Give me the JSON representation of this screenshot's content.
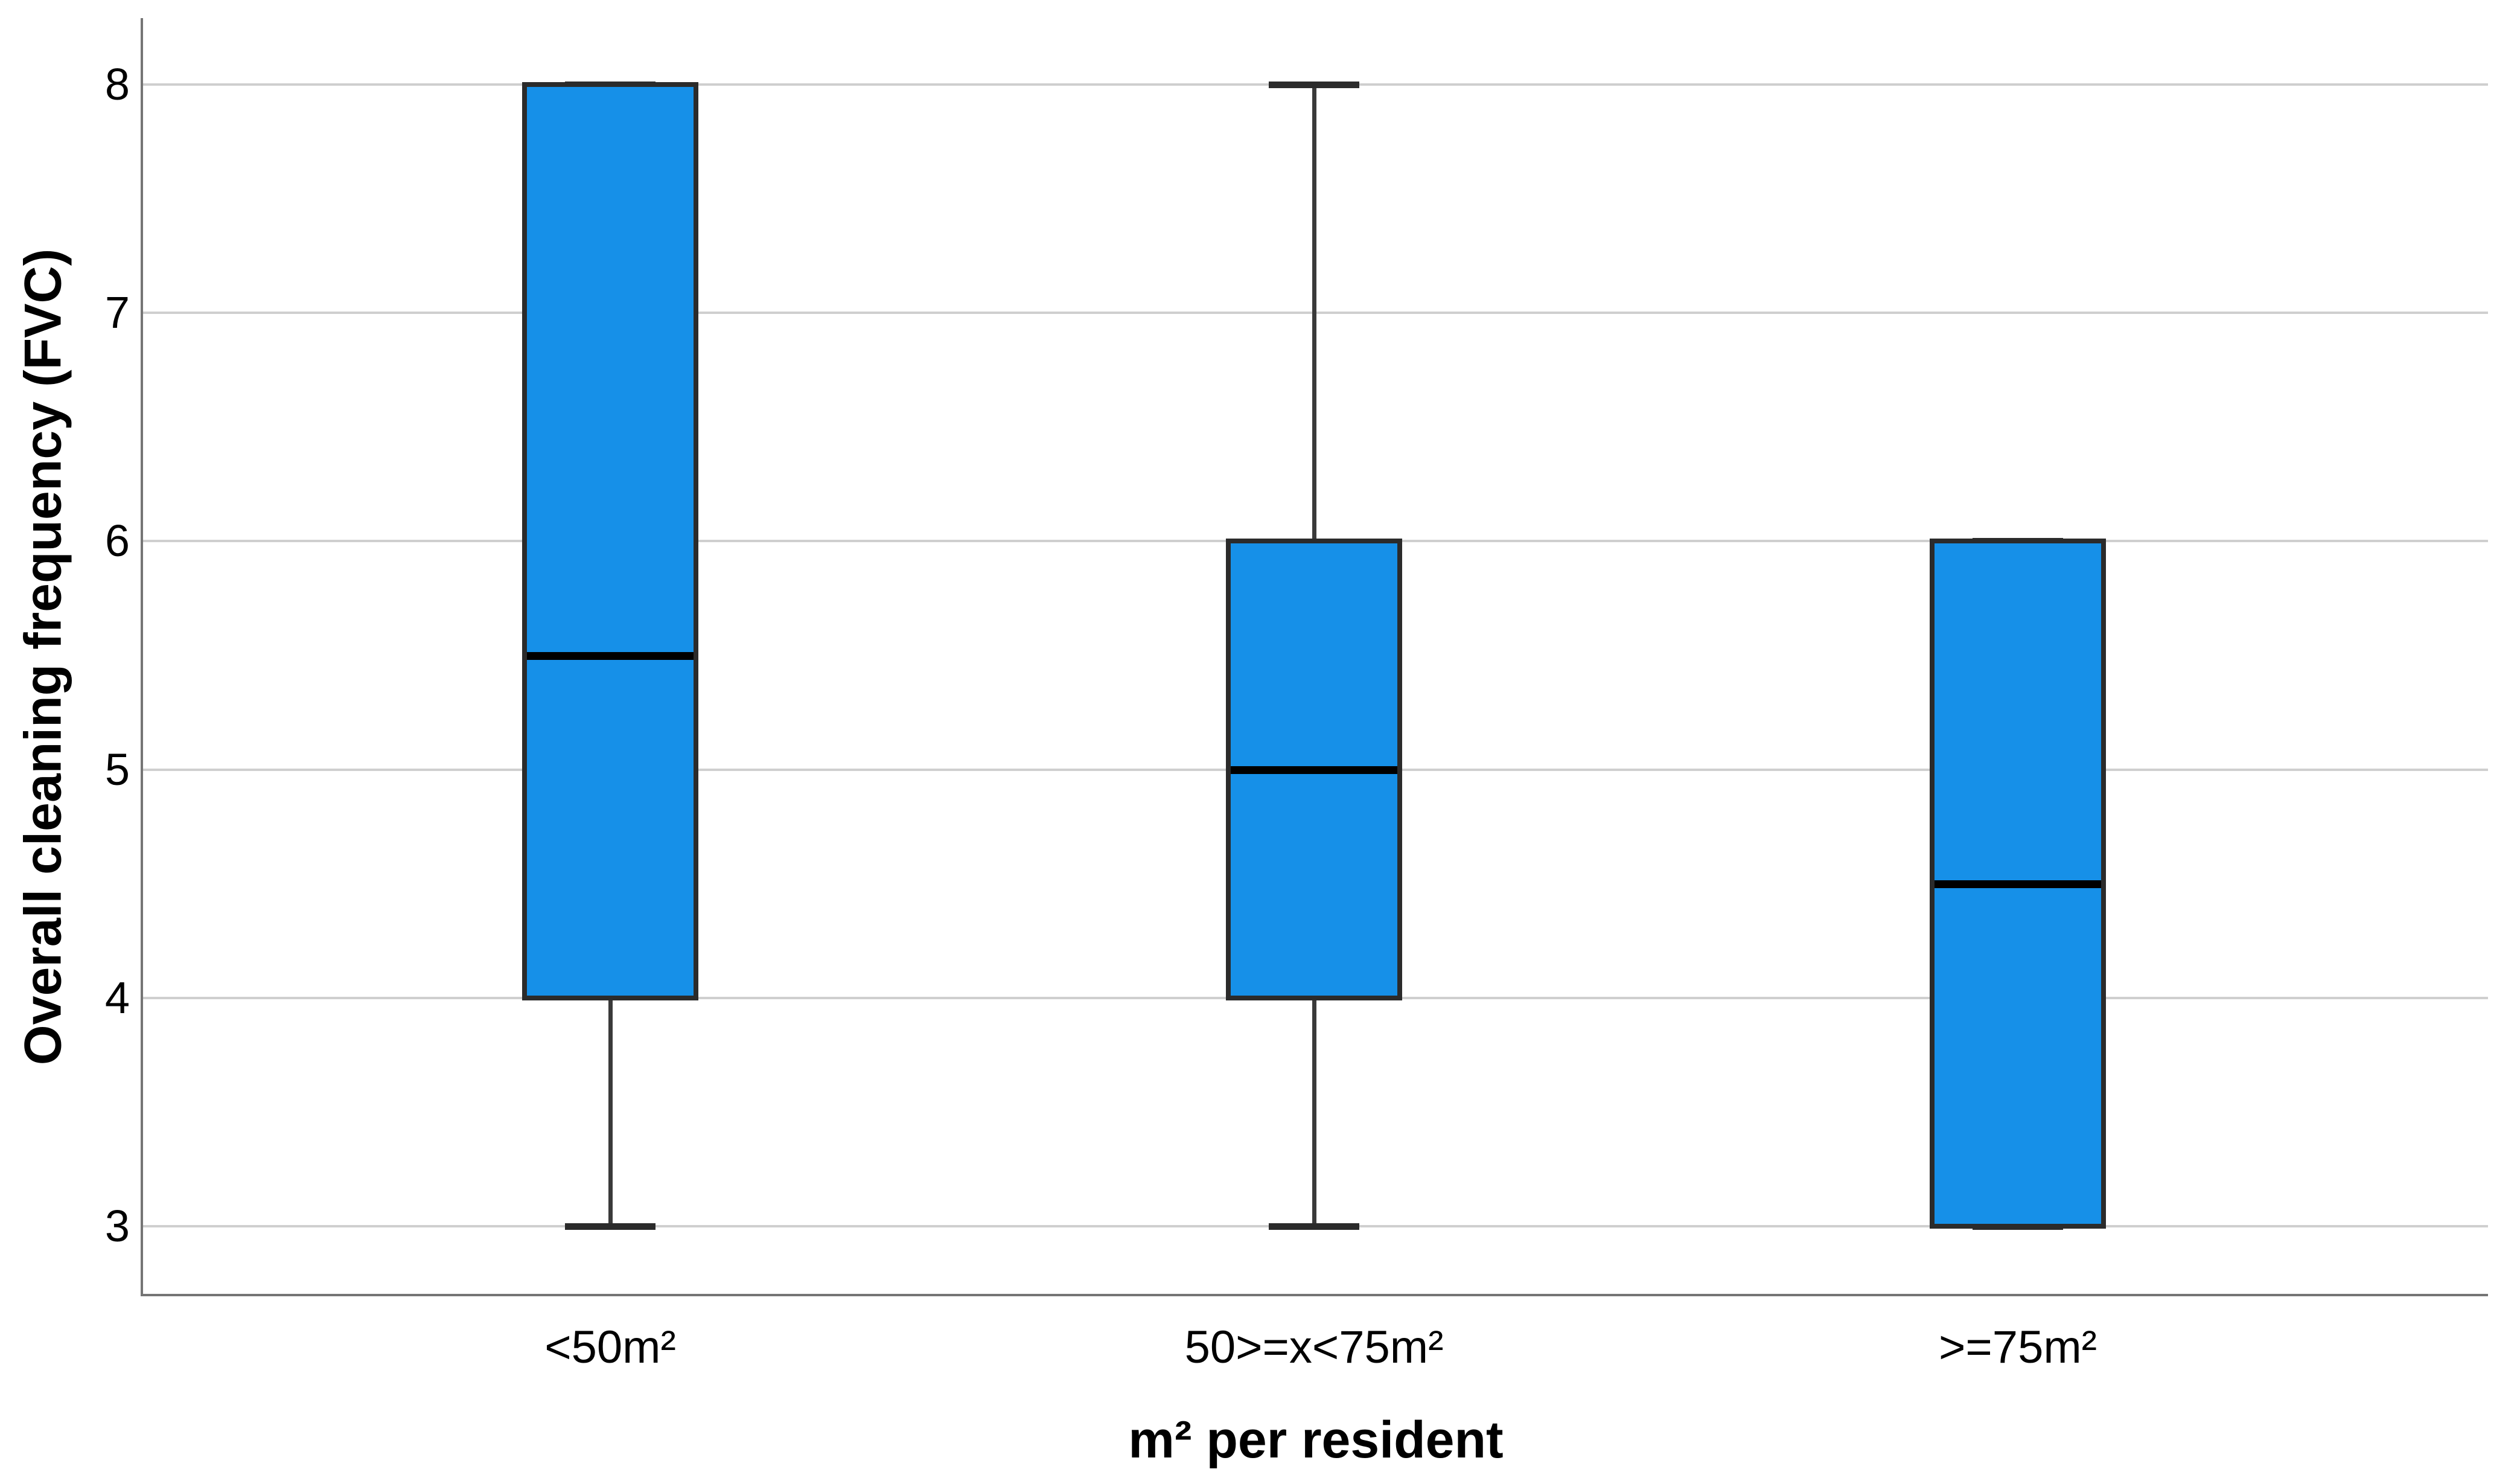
{
  "chart_data": {
    "type": "boxplot",
    "title": "",
    "xlabel": "m² per resident",
    "ylabel": "Overall cleaning frequency (FVC)",
    "categories": [
      "<50m²",
      "50>=x<75m²",
      ">=75m²"
    ],
    "yticks": [
      3,
      4,
      5,
      6,
      7,
      8
    ],
    "ylim": [
      2.7,
      8.29
    ],
    "grid": true,
    "legend": "none",
    "series": [
      {
        "category": "<50m²",
        "min": 3,
        "q1": 4,
        "median": 5.5,
        "q3": 8,
        "max": 8
      },
      {
        "category": "50>=x<75m²",
        "min": 3,
        "q1": 4,
        "median": 5.0,
        "q3": 6,
        "max": 8
      },
      {
        "category": ">=75m²",
        "min": 3,
        "q1": 3,
        "median": 4.5,
        "q3": 6,
        "max": 6
      }
    ],
    "colors": {
      "box_fill": "#1690E8",
      "box_border": "#2B2B2B",
      "median": "#000000",
      "whisker": "#3A3A3A",
      "whisker_cap": "#2B2B2B",
      "gridline": "#CFCFCF",
      "axis": "#757575",
      "text": "#000000"
    }
  }
}
